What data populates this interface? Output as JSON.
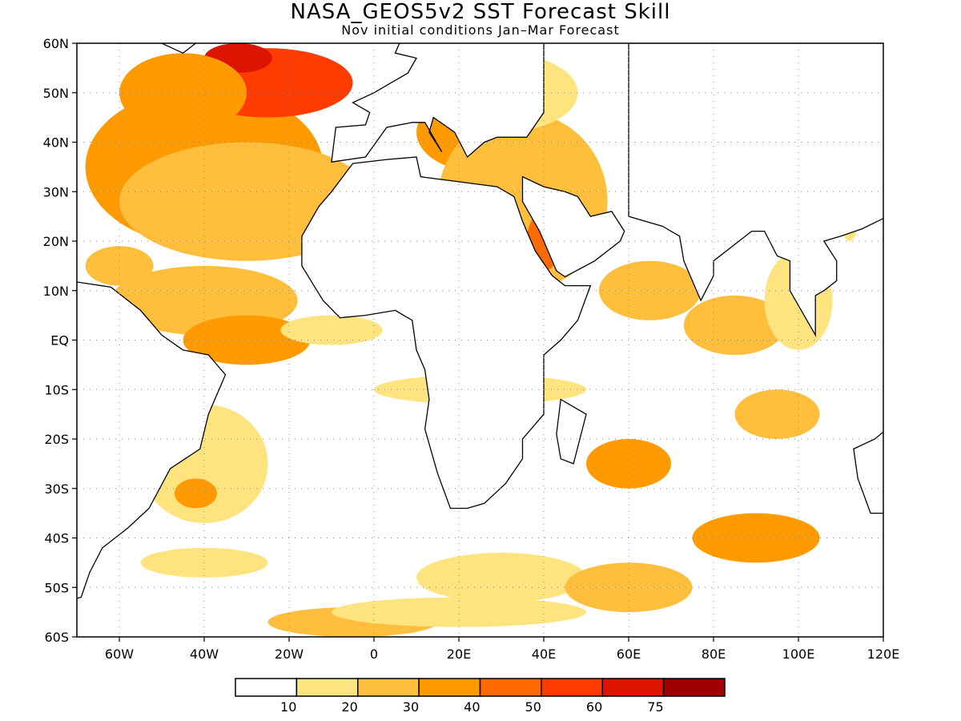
{
  "title": "NASA_GEOS5v2 SST Forecast Skill",
  "subtitle": "Nov initial conditions  Jan–Mar Forecast",
  "map": {
    "lon_range": [
      -70,
      120
    ],
    "lat_range": [
      -60,
      60
    ],
    "lat_ticks": [
      {
        "value": 60,
        "label": "60N"
      },
      {
        "value": 50,
        "label": "50N"
      },
      {
        "value": 40,
        "label": "40N"
      },
      {
        "value": 30,
        "label": "30N"
      },
      {
        "value": 20,
        "label": "20N"
      },
      {
        "value": 10,
        "label": "10N"
      },
      {
        "value": 0,
        "label": "EQ"
      },
      {
        "value": -10,
        "label": "10S"
      },
      {
        "value": -20,
        "label": "20S"
      },
      {
        "value": -30,
        "label": "30S"
      },
      {
        "value": -40,
        "label": "40S"
      },
      {
        "value": -50,
        "label": "50S"
      },
      {
        "value": -60,
        "label": "60S"
      }
    ],
    "lon_ticks": [
      {
        "value": -60,
        "label": "60W"
      },
      {
        "value": -40,
        "label": "40W"
      },
      {
        "value": -20,
        "label": "20W"
      },
      {
        "value": 0,
        "label": "0"
      },
      {
        "value": 20,
        "label": "20E"
      },
      {
        "value": 40,
        "label": "40E"
      },
      {
        "value": 60,
        "label": "60E"
      },
      {
        "value": 80,
        "label": "80E"
      },
      {
        "value": 100,
        "label": "100E"
      },
      {
        "value": 120,
        "label": "120E"
      }
    ],
    "grid": true,
    "skill_regions": [
      {
        "lon": -50,
        "lat": 32,
        "rx": 16,
        "ry": 10,
        "level": 4
      },
      {
        "lon": -40,
        "lat": 35,
        "rx": 28,
        "ry": 16,
        "level": 3
      },
      {
        "lon": -25,
        "lat": 52,
        "rx": 20,
        "ry": 7,
        "level": 5
      },
      {
        "lon": -32,
        "lat": 57,
        "rx": 8,
        "ry": 3,
        "level": 6
      },
      {
        "lon": -45,
        "lat": 50,
        "rx": 15,
        "ry": 8,
        "level": 3
      },
      {
        "lon": -30,
        "lat": 28,
        "rx": 30,
        "ry": 12,
        "level": 2
      },
      {
        "lon": -60,
        "lat": 15,
        "rx": 8,
        "ry": 4,
        "level": 2
      },
      {
        "lon": -40,
        "lat": 8,
        "rx": 22,
        "ry": 7,
        "level": 2
      },
      {
        "lon": -30,
        "lat": 0,
        "rx": 15,
        "ry": 5,
        "level": 3
      },
      {
        "lon": -10,
        "lat": 2,
        "rx": 12,
        "ry": 3,
        "level": 1
      },
      {
        "lon": 5,
        "lat": 20,
        "rx": 6,
        "ry": 4,
        "level": 1
      },
      {
        "lon": 25,
        "lat": 42,
        "rx": 15,
        "ry": 8,
        "level": 3
      },
      {
        "lon": 30,
        "lat": 34,
        "rx": 8,
        "ry": 3,
        "level": 5
      },
      {
        "lon": 35,
        "lat": 28,
        "rx": 20,
        "ry": 18,
        "level": 2
      },
      {
        "lon": 40,
        "lat": 20,
        "rx": 4,
        "ry": 6,
        "level": 4
      },
      {
        "lon": 30,
        "lat": 50,
        "rx": 18,
        "ry": 8,
        "level": 1
      },
      {
        "lon": 65,
        "lat": 10,
        "rx": 12,
        "ry": 6,
        "level": 2
      },
      {
        "lon": 85,
        "lat": 3,
        "rx": 12,
        "ry": 6,
        "level": 2
      },
      {
        "lon": 100,
        "lat": 8,
        "rx": 8,
        "ry": 10,
        "level": 1
      },
      {
        "lon": 112,
        "lat": 40,
        "rx": 4,
        "ry": 20,
        "level": 1
      },
      {
        "lon": 25,
        "lat": -10,
        "rx": 25,
        "ry": 3,
        "level": 1
      },
      {
        "lon": -40,
        "lat": -25,
        "rx": 15,
        "ry": 12,
        "level": 1
      },
      {
        "lon": -42,
        "lat": -31,
        "rx": 5,
        "ry": 3,
        "level": 3
      },
      {
        "lon": 60,
        "lat": -25,
        "rx": 10,
        "ry": 5,
        "level": 3
      },
      {
        "lon": 95,
        "lat": -15,
        "rx": 10,
        "ry": 5,
        "level": 2
      },
      {
        "lon": 90,
        "lat": -40,
        "rx": 15,
        "ry": 5,
        "level": 3
      },
      {
        "lon": 30,
        "lat": -48,
        "rx": 20,
        "ry": 5,
        "level": 1
      },
      {
        "lon": 60,
        "lat": -50,
        "rx": 15,
        "ry": 5,
        "level": 2
      },
      {
        "lon": -5,
        "lat": -57,
        "rx": 20,
        "ry": 3,
        "level": 2
      },
      {
        "lon": 20,
        "lat": -55,
        "rx": 30,
        "ry": 3,
        "level": 1
      },
      {
        "lon": -40,
        "lat": -45,
        "rx": 15,
        "ry": 3,
        "level": 1
      }
    ]
  },
  "colorbar": {
    "colors": [
      "#ffffff",
      "#ffe37f",
      "#ffbe3c",
      "#ff9b00",
      "#ff6a00",
      "#ff3c00",
      "#dc1400",
      "#a00000"
    ],
    "labels": [
      "10",
      "20",
      "30",
      "40",
      "50",
      "60",
      "75"
    ]
  }
}
